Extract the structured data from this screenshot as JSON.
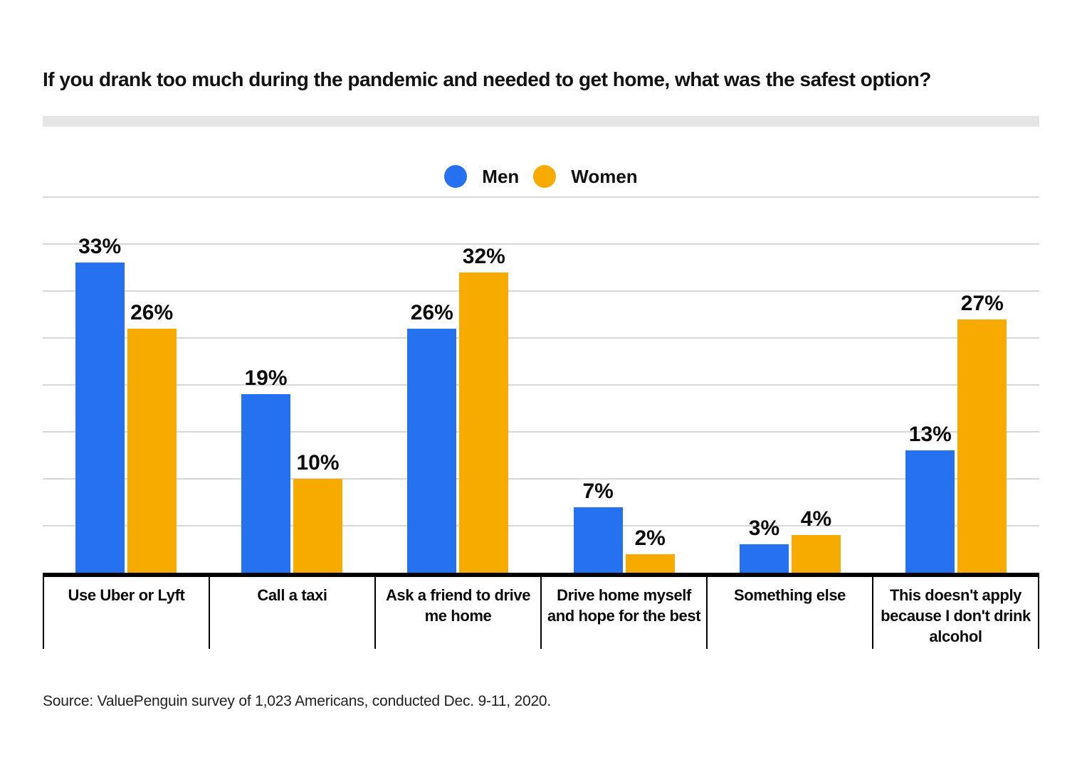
{
  "source": "Source: ValuePenguin survey of 1,023 Americans, conducted Dec. 9-11, 2020.",
  "colors": {
    "men": "#2571F0",
    "women": "#F7AB00",
    "gridline": "#D8D8D8",
    "axis": "#000000",
    "divider_bar": "#E5E5E5"
  },
  "chart_data": {
    "type": "bar",
    "title": "If you drank too much during the pandemic and needed to get home, what was the safest option?",
    "categories": [
      "Use Uber or Lyft",
      "Call a taxi",
      "Ask a friend to drive me home",
      "Drive home myself and hope for the best",
      "Something else",
      "This doesn't apply because I don't drink alcohol"
    ],
    "series": [
      {
        "name": "Men",
        "color": "#2571F0",
        "values": [
          33,
          19,
          26,
          7,
          3,
          13
        ]
      },
      {
        "name": "Women",
        "color": "#F7AB00",
        "values": [
          26,
          10,
          32,
          2,
          4,
          27
        ]
      }
    ],
    "value_suffix": "%",
    "xlabel": "",
    "ylabel": "",
    "ylim": [
      0,
      40
    ],
    "grid_step": 5,
    "grid": true,
    "legend_position": "top-center",
    "y_tick_labels_shown": false
  }
}
